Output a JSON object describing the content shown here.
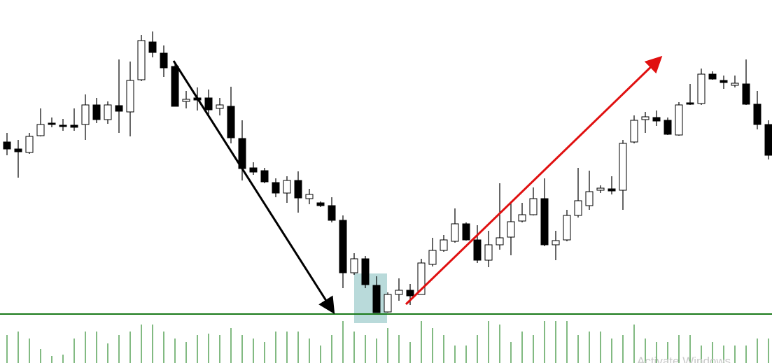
{
  "chart_data": {
    "type": "candlestick",
    "open": [
      247,
      237,
      232,
      256,
      274,
      271,
      271,
      272,
      300,
      279,
      299,
      290,
      336,
      390,
      374,
      355,
      305,
      310,
      310,
      295,
      298,
      252,
      210,
      206,
      189,
      174,
      192,
      166,
      160,
      156,
      135,
      60,
      80,
      42,
      4,
      29,
      35,
      29,
      72,
      92,
      105,
      130,
      107,
      78,
      100,
      111,
      134,
      143,
      166,
      100,
      107,
      142,
      156,
      178,
      180,
      178,
      247,
      279,
      282,
      278,
      257,
      303,
      302,
      344,
      335,
      328,
      330,
      301,
      272
    ],
    "high": [
      260,
      250,
      260,
      295,
      282,
      280,
      295,
      315,
      310,
      305,
      365,
      362,
      400,
      405,
      385,
      362,
      320,
      325,
      322,
      310,
      326,
      278,
      218,
      210,
      195,
      198,
      205,
      180,
      162,
      168,
      142,
      88,
      84,
      55,
      32,
      52,
      44,
      80,
      110,
      114,
      152,
      132,
      128,
      120,
      188,
      162,
      160,
      182,
      195,
      120,
      150,
      210,
      206,
      185,
      198,
      250,
      285,
      290,
      292,
      282,
      304,
      330,
      352,
      348,
      342,
      342,
      365,
      320,
      278
    ],
    "low": [
      228,
      196,
      230,
      255,
      268,
      263,
      263,
      250,
      274,
      273,
      260,
      255,
      334,
      368,
      340,
      298,
      295,
      292,
      282,
      285,
      245,
      192,
      200,
      188,
      168,
      160,
      146,
      158,
      154,
      132,
      38,
      57,
      38,
      3,
      3,
      20,
      14,
      29,
      69,
      90,
      103,
      106,
      74,
      68,
      93,
      85,
      132,
      142,
      98,
      78,
      105,
      139,
      150,
      174,
      172,
      150,
      245,
      260,
      270,
      257,
      256,
      300,
      300,
      336,
      323,
      325,
      300,
      265,
      222
    ],
    "close": [
      237,
      233,
      255,
      272,
      272,
      269,
      268,
      300,
      279,
      300,
      291,
      335,
      392,
      375,
      353,
      298,
      308,
      307,
      293,
      300,
      253,
      209,
      204,
      190,
      174,
      192,
      167,
      172,
      156,
      135,
      60,
      80,
      43,
      3,
      29,
      35,
      27,
      74,
      92,
      107,
      130,
      107,
      78,
      100,
      110,
      133,
      143,
      166,
      100,
      106,
      142,
      163,
      176,
      181,
      177,
      245,
      278,
      283,
      277,
      258,
      300,
      301,
      344,
      337,
      332,
      331,
      301,
      272,
      228
    ],
    "volume": [
      40,
      45,
      35,
      20,
      10,
      12,
      35,
      45,
      45,
      28,
      40,
      45,
      55,
      55,
      45,
      35,
      30,
      40,
      42,
      40,
      50,
      40,
      35,
      30,
      45,
      45,
      45,
      35,
      25,
      40,
      60,
      45,
      40,
      35,
      50,
      40,
      30,
      60,
      50,
      40,
      25,
      25,
      40,
      60,
      55,
      30,
      45,
      40,
      60,
      60,
      60,
      40,
      45,
      45,
      35,
      40,
      55,
      35,
      30,
      30,
      40,
      40,
      25,
      30,
      25,
      25,
      25,
      35,
      35
    ],
    "ylim": [
      0,
      450
    ],
    "volume_lim": [
      0,
      70
    ],
    "up_color": "#ffffff",
    "down_color": "#000000",
    "volume_color": "#2e8b2e"
  },
  "watermark": "Activate Windows"
}
